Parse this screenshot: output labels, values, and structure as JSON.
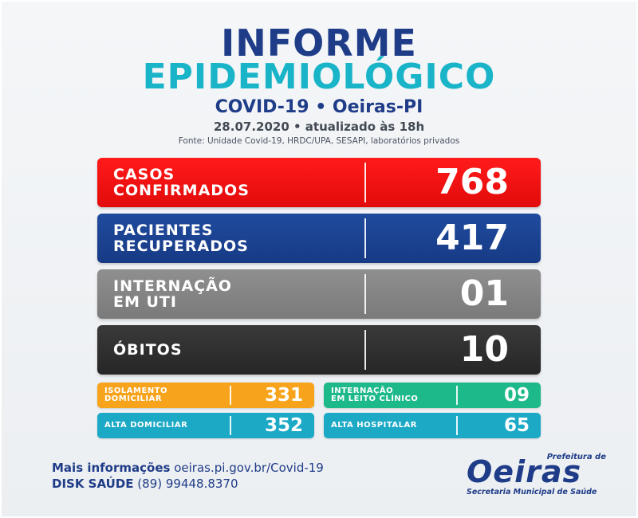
{
  "header": {
    "title_line1": "INFORME",
    "title_line2": "EPIDEMIOLÓGICO",
    "subtitle": "COVID-19 • Oeiras-PI",
    "dateline": "28.07.2020 • atualizado às 18h",
    "source": "Fonte: Unidade Covid-19, HRDC/UPA, SESAPI, laboratórios privados"
  },
  "cards": [
    {
      "label1": "CASOS",
      "label2": "CONFIRMADOS",
      "value": "768",
      "color": "#ff1a1a"
    },
    {
      "label1": "PACIENTES",
      "label2": "RECUPERADOS",
      "value": "417",
      "color": "#1f4b9e"
    },
    {
      "label1": "INTERNAÇÃO",
      "label2": "EM UTI",
      "value": "01",
      "color": "#8f8f8f"
    },
    {
      "label1": "ÓBITOS",
      "label2": "",
      "value": "10",
      "color": "#2f2f2f"
    }
  ],
  "mini_cards": [
    {
      "label1": "ISOLAMENTO",
      "label2": "DOMICILIAR",
      "value": "331",
      "color": "#f7a41c"
    },
    {
      "label1": "INTERNAÇÃO",
      "label2": "EM LEITO CLÍNICO",
      "value": "09",
      "color": "#1eb98a"
    },
    {
      "label1": "ALTA DOMICILIAR",
      "label2": "",
      "value": "352",
      "color": "#1ca9c6"
    },
    {
      "label1": "ALTA HOSPITALAR",
      "label2": "",
      "value": "65",
      "color": "#1ca9c6"
    }
  ],
  "footer": {
    "info_label": "Mais informações",
    "info_url": "oeiras.pi.gov.br/Covid-19",
    "phone_label": "DISK SAÚDE",
    "phone_number": "(89) 99448.8370"
  },
  "logo": {
    "prefeitura": "Prefeitura de",
    "name": "Oeiras",
    "secretaria": "Secretaria Municipal de Saúde"
  }
}
